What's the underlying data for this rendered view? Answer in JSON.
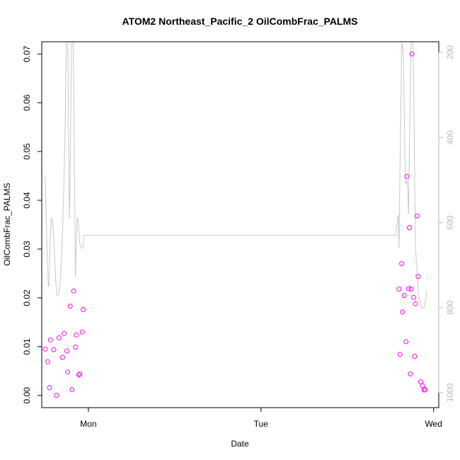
{
  "chart_data": {
    "type": "scatter",
    "title": "ATOM2 Northeast_Pacific_2 OilCombFrac_PALMS",
    "xlabel": "Date",
    "ylabel": "OilCombFrac_PALMS",
    "xlim": [
      -0.27,
      2.03
    ],
    "ylim": [
      -0.0025,
      0.0725
    ],
    "y2lim": [
      1035,
      175
    ],
    "x_ticks": [
      {
        "value": 0,
        "label": "Mon"
      },
      {
        "value": 1,
        "label": "Tue"
      },
      {
        "value": 2,
        "label": "Wed"
      }
    ],
    "y_ticks": [
      {
        "value": 0.0,
        "label": "0.00"
      },
      {
        "value": 0.01,
        "label": "0.01"
      },
      {
        "value": 0.02,
        "label": "0.02"
      },
      {
        "value": 0.03,
        "label": "0.03"
      },
      {
        "value": 0.04,
        "label": "0.04"
      },
      {
        "value": 0.05,
        "label": "0.05"
      },
      {
        "value": 0.06,
        "label": "0.06"
      },
      {
        "value": 0.07,
        "label": "0.07"
      }
    ],
    "y2_ticks": [
      {
        "value": 200,
        "label": "200"
      },
      {
        "value": 400,
        "label": "400"
      },
      {
        "value": 600,
        "label": "600"
      },
      {
        "value": 800,
        "label": "800"
      },
      {
        "value": 1000,
        "label": "1000"
      }
    ],
    "grid": false,
    "colors": {
      "points": "#ff00ff",
      "line": "#c8c8c8",
      "right_axis": "#b8b8b8",
      "axes": "#000000"
    },
    "series": [
      {
        "kind": "points",
        "axis": "left",
        "x": [
          -0.25,
          -0.235,
          -0.225,
          -0.22,
          -0.2,
          -0.185,
          -0.17,
          -0.15,
          -0.14,
          -0.125,
          -0.12,
          -0.105,
          -0.095,
          -0.085,
          -0.075,
          -0.07,
          -0.055,
          -0.05,
          -0.035,
          1.8,
          1.805,
          1.815,
          1.82,
          1.83,
          1.84,
          1.845,
          1.855,
          1.86,
          1.865,
          1.87,
          1.875,
          1.885,
          1.89,
          1.895,
          1.905,
          1.91,
          1.925,
          1.935,
          1.945,
          1.95
        ],
        "y": [
          0.0095,
          0.0069,
          0.0016,
          0.0114,
          0.0094,
          0.0,
          0.0118,
          0.0078,
          0.0127,
          0.0091,
          0.0048,
          0.0183,
          0.0012,
          0.0214,
          0.0099,
          0.0124,
          0.0042,
          0.0044,
          0.013,
          0.0218,
          0.0084,
          0.027,
          0.0171,
          0.0205,
          0.011,
          0.0449,
          0.0219,
          0.0344,
          0.0044,
          0.0218,
          0.07,
          0.0201,
          0.008,
          0.0188,
          0.0368,
          0.0244,
          0.0028,
          0.002,
          0.0011,
          0.0012
        ],
        "extra_point": {
          "x": -0.03,
          "y": 0.0176
        }
      },
      {
        "kind": "line",
        "axis": "right",
        "x": [
          -0.25,
          -0.245,
          -0.24,
          -0.232,
          -0.228,
          -0.222,
          -0.215,
          -0.21,
          -0.2,
          -0.19,
          -0.183,
          -0.175,
          -0.168,
          -0.16,
          -0.15,
          -0.142,
          -0.135,
          -0.13,
          -0.125,
          -0.12,
          -0.115,
          -0.11,
          -0.105,
          -0.1,
          -0.095,
          -0.09,
          -0.085,
          -0.08,
          -0.075,
          -0.07,
          -0.065,
          -0.06,
          -0.055,
          -0.05,
          -0.045,
          -0.04,
          -0.035,
          -0.03,
          -0.025,
          -0.02,
          1.78,
          1.785,
          1.79,
          1.795,
          1.8,
          1.805,
          1.81,
          1.815,
          1.82,
          1.825,
          1.83,
          1.835,
          1.84,
          1.845,
          1.85,
          1.855,
          1.86,
          1.865,
          1.87,
          1.875,
          1.88,
          1.885,
          1.89,
          1.895,
          1.9,
          1.905,
          1.91,
          1.915,
          1.92,
          1.925,
          1.93,
          1.935,
          1.94,
          1.945,
          1.95,
          1.955,
          1.96
        ],
        "y": [
          490,
          590,
          650,
          750,
          750,
          650,
          590,
          590,
          640,
          730,
          770,
          770,
          760,
          720,
          620,
          520,
          380,
          240,
          100,
          100,
          380,
          590,
          490,
          270,
          100,
          100,
          270,
          490,
          730,
          650,
          590,
          590,
          620,
          650,
          650,
          660,
          660,
          660,
          630,
          630,
          630,
          610,
          600,
          580,
          660,
          480,
          350,
          180,
          180,
          210,
          330,
          470,
          510,
          500,
          520,
          580,
          420,
          280,
          150,
          80,
          180,
          300,
          490,
          660,
          690,
          720,
          750,
          780,
          780,
          790,
          800,
          800,
          800,
          800,
          790,
          780,
          760
        ]
      }
    ]
  }
}
